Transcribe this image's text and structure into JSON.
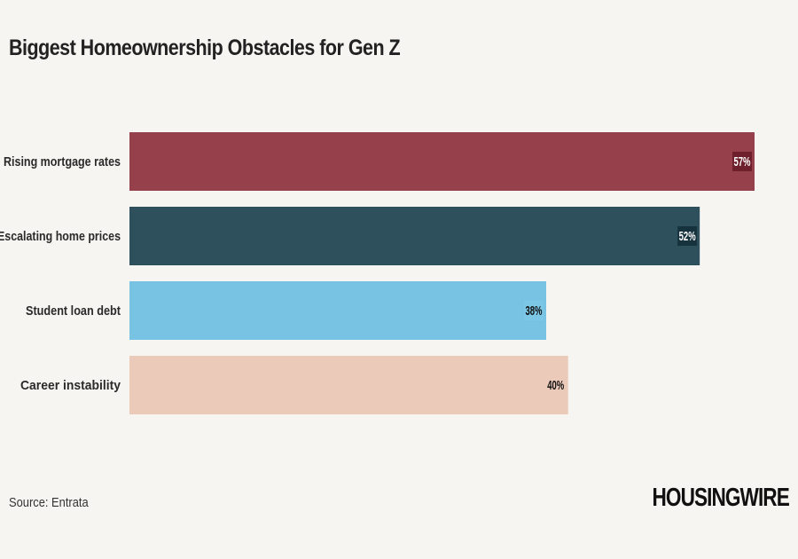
{
  "chart_data": {
    "type": "bar",
    "orientation": "horizontal",
    "title": "Biggest Homeownership Obstacles for Gen Z",
    "categories": [
      "Rising mortgage rates",
      "Escalating home prices",
      "Student loan debt",
      "Career instability"
    ],
    "values": [
      57,
      52,
      38,
      40
    ],
    "value_labels": [
      "57%",
      "52%",
      "38%",
      "40%"
    ],
    "colors": [
      "#96404b",
      "#2e4f5c",
      "#78c2e3",
      "#ebcab9"
    ],
    "label_colors": [
      "#ffffff",
      "#ffffff",
      "#111111",
      "#111111"
    ],
    "label_backgrounds": [
      "#6e1f2c",
      "#16323d",
      "#7cc6e6",
      "#ebcab9"
    ],
    "xlim": [
      0,
      57
    ],
    "grid": false,
    "legend": "none"
  },
  "footer": {
    "source": "Source: Entrata",
    "logo": "HOUSINGWIRE"
  }
}
